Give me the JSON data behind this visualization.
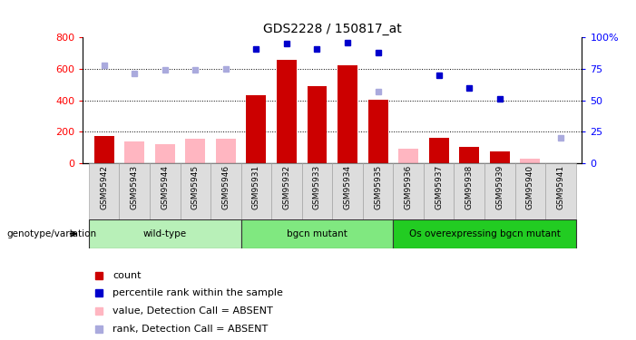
{
  "title": "GDS2228 / 150817_at",
  "samples": [
    "GSM95942",
    "GSM95943",
    "GSM95944",
    "GSM95945",
    "GSM95946",
    "GSM95931",
    "GSM95932",
    "GSM95933",
    "GSM95934",
    "GSM95935",
    "GSM95936",
    "GSM95937",
    "GSM95938",
    "GSM95939",
    "GSM95940",
    "GSM95941"
  ],
  "groups": [
    {
      "name": "wild-type",
      "indices": [
        0,
        1,
        2,
        3,
        4
      ],
      "color": "#b8f0b8"
    },
    {
      "name": "bgcn mutant",
      "indices": [
        5,
        6,
        7,
        8,
        9
      ],
      "color": "#80e880"
    },
    {
      "name": "Os overexpressing bgcn mutant",
      "indices": [
        10,
        11,
        12,
        13,
        14,
        15
      ],
      "color": "#22cc22"
    }
  ],
  "count_present": [
    175,
    null,
    null,
    null,
    null,
    430,
    655,
    490,
    620,
    405,
    null,
    160,
    105,
    75,
    null,
    null
  ],
  "count_absent": [
    null,
    140,
    120,
    155,
    155,
    null,
    null,
    null,
    null,
    null,
    90,
    null,
    null,
    null,
    30,
    null
  ],
  "rank_present": [
    null,
    null,
    null,
    null,
    null,
    91,
    95,
    91,
    96,
    88,
    null,
    70,
    60,
    51,
    null,
    null
  ],
  "rank_absent": [
    78,
    71,
    74,
    74,
    75,
    null,
    null,
    null,
    null,
    57,
    null,
    null,
    null,
    null,
    null,
    20
  ],
  "ylim_left": [
    0,
    800
  ],
  "ylim_right": [
    0,
    100
  ],
  "color_present_bar": "#cc0000",
  "color_absent_bar": "#ffb6c1",
  "color_present_dot": "#0000cc",
  "color_absent_dot": "#aaaadd",
  "genotype_label": "genotype/variation",
  "legend_items": [
    {
      "label": "count",
      "color": "#cc0000"
    },
    {
      "label": "percentile rank within the sample",
      "color": "#0000cc"
    },
    {
      "label": "value, Detection Call = ABSENT",
      "color": "#ffb6c1"
    },
    {
      "label": "rank, Detection Call = ABSENT",
      "color": "#aaaadd"
    }
  ]
}
